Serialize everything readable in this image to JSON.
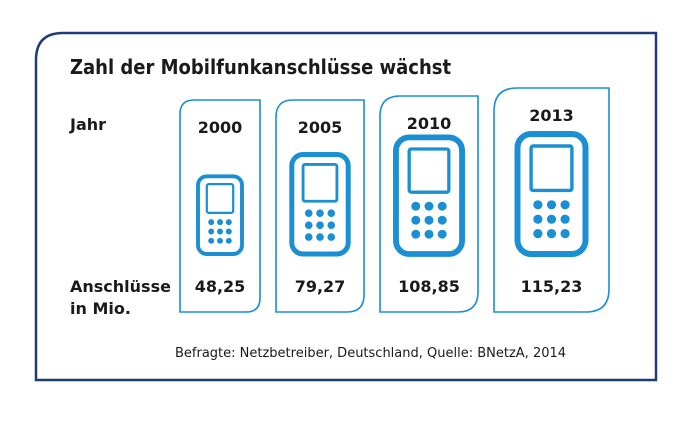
{
  "title": "Zahl der Mobilfunkanschlüsse wächst",
  "labels": {
    "year": "Jahr",
    "connections_line1": "Anschlüsse",
    "connections_line2": "in Mio."
  },
  "source": "Befragte: Netzbetreiber, Deutschland, Quelle: BNetzA, 2014",
  "colors": {
    "accent": "#1a8fd4",
    "frame": "#1f3c78",
    "text": "#1a1a1a"
  },
  "chart_data": {
    "type": "pictogram",
    "categories": [
      "2000",
      "2005",
      "2010",
      "2013"
    ],
    "values": [
      48.25,
      79.27,
      108.85,
      115.23
    ],
    "value_labels": [
      "48,25",
      "79,27",
      "108,85",
      "115,23"
    ],
    "icon": "mobile-phone-icon"
  }
}
